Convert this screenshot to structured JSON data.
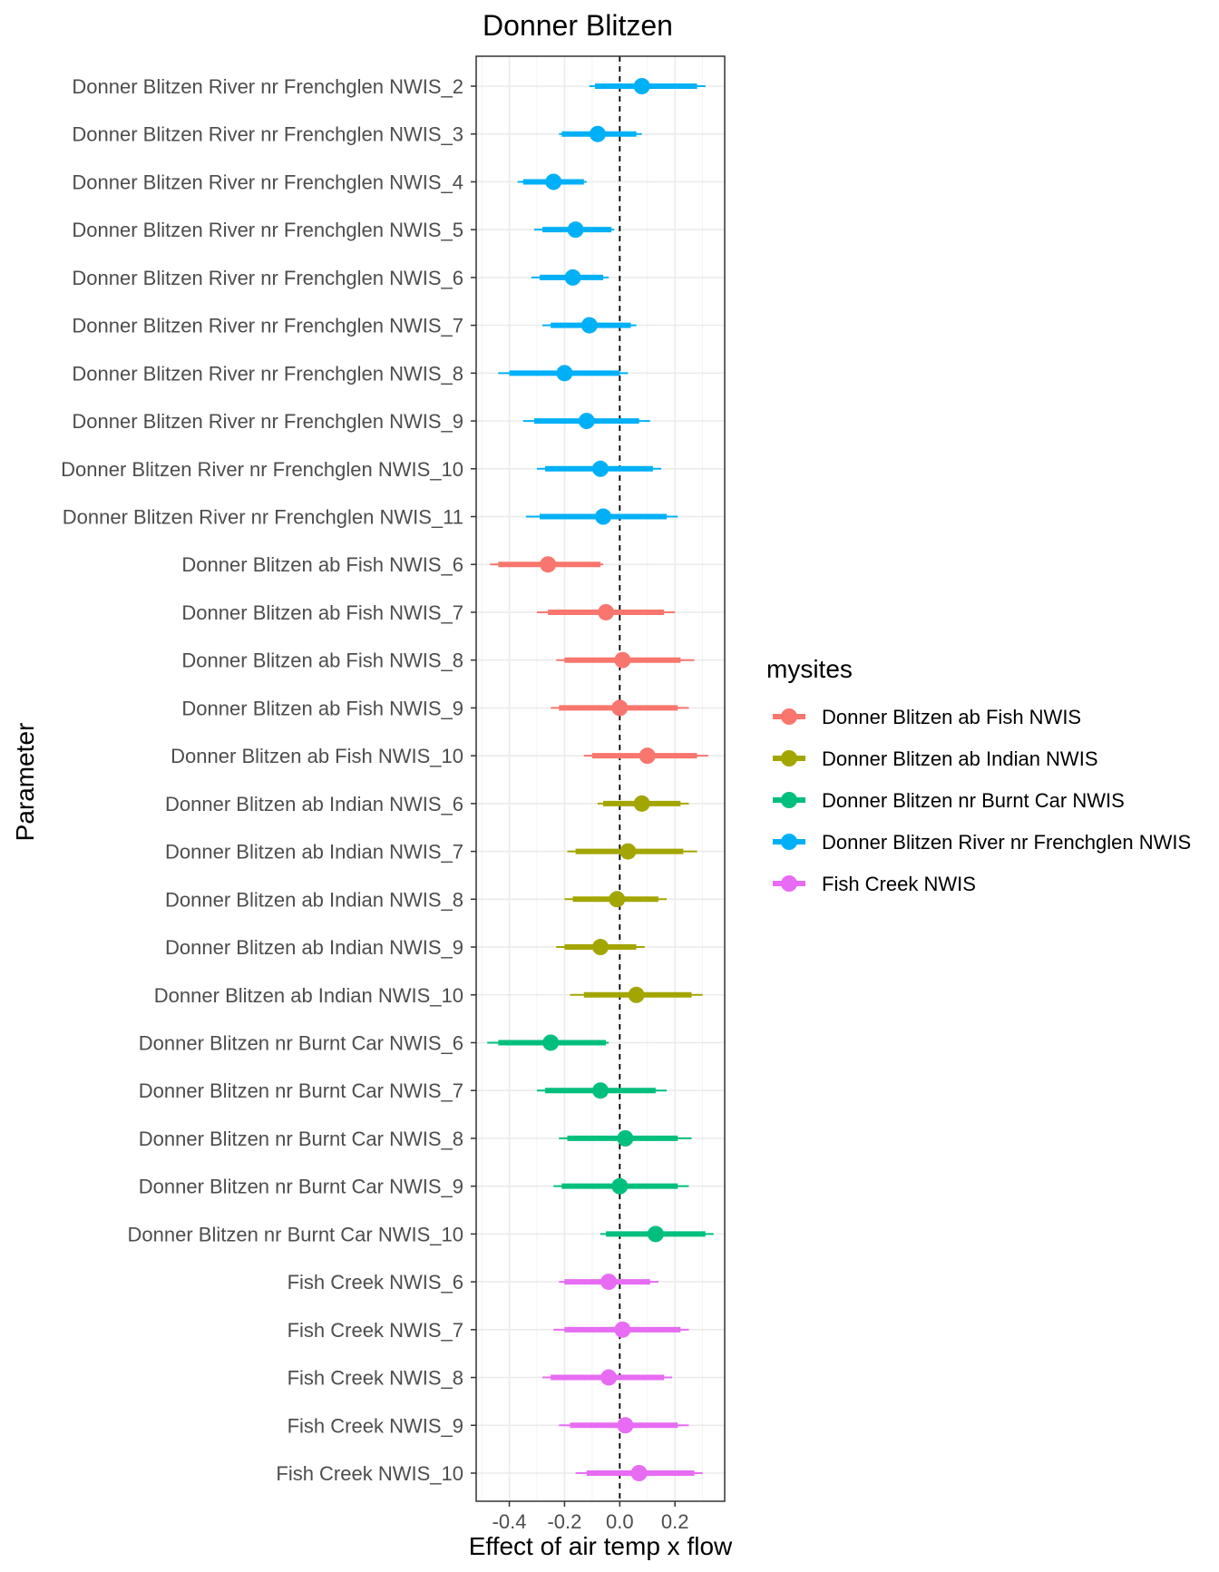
{
  "chart_data": {
    "type": "scatter",
    "subtype": "interval-forest",
    "title": "Donner Blitzen",
    "xlabel": "Effect of air temp x flow",
    "ylabel": "Parameter",
    "xlim": [
      -0.52,
      0.38
    ],
    "xticks": [
      -0.4,
      -0.2,
      0.0,
      0.2
    ],
    "xtick_labels": [
      "-0.4",
      "-0.2",
      "0.0",
      "0.2"
    ],
    "reference_line": {
      "x": 0,
      "style": "dashed"
    },
    "grid": true,
    "legend": {
      "title": "mysites",
      "placement": "right",
      "entries": [
        {
          "name": "Donner Blitzen ab Fish NWIS",
          "color": "#F8766D"
        },
        {
          "name": "Donner Blitzen ab Indian NWIS",
          "color": "#A3A500"
        },
        {
          "name": "Donner Blitzen nr Burnt Car NWIS",
          "color": "#00BF7D"
        },
        {
          "name": "Donner Blitzen River nr Frenchglen NWIS",
          "color": "#00B0F6"
        },
        {
          "name": "Fish Creek NWIS",
          "color": "#E76BF3"
        }
      ]
    },
    "rows": [
      {
        "label": "Donner Blitzen River nr Frenchglen NWIS_2",
        "site": 3,
        "mean": 0.08,
        "inner": [
          -0.09,
          0.28
        ],
        "outer": [
          -0.11,
          0.31
        ]
      },
      {
        "label": "Donner Blitzen River nr Frenchglen NWIS_3",
        "site": 3,
        "mean": -0.08,
        "inner": [
          -0.21,
          0.06
        ],
        "outer": [
          -0.22,
          0.08
        ]
      },
      {
        "label": "Donner Blitzen River nr Frenchglen NWIS_4",
        "site": 3,
        "mean": -0.24,
        "inner": [
          -0.35,
          -0.13
        ],
        "outer": [
          -0.37,
          -0.12
        ]
      },
      {
        "label": "Donner Blitzen River nr Frenchglen NWIS_5",
        "site": 3,
        "mean": -0.16,
        "inner": [
          -0.28,
          -0.03
        ],
        "outer": [
          -0.31,
          -0.02
        ]
      },
      {
        "label": "Donner Blitzen River nr Frenchglen NWIS_6",
        "site": 3,
        "mean": -0.17,
        "inner": [
          -0.29,
          -0.06
        ],
        "outer": [
          -0.32,
          -0.04
        ]
      },
      {
        "label": "Donner Blitzen River nr Frenchglen NWIS_7",
        "site": 3,
        "mean": -0.11,
        "inner": [
          -0.25,
          0.04
        ],
        "outer": [
          -0.28,
          0.06
        ]
      },
      {
        "label": "Donner Blitzen River nr Frenchglen NWIS_8",
        "site": 3,
        "mean": -0.2,
        "inner": [
          -0.4,
          0.0
        ],
        "outer": [
          -0.44,
          0.03
        ]
      },
      {
        "label": "Donner Blitzen River nr Frenchglen NWIS_9",
        "site": 3,
        "mean": -0.12,
        "inner": [
          -0.31,
          0.07
        ],
        "outer": [
          -0.35,
          0.11
        ]
      },
      {
        "label": "Donner Blitzen River nr Frenchglen NWIS_10",
        "site": 3,
        "mean": -0.07,
        "inner": [
          -0.27,
          0.12
        ],
        "outer": [
          -0.3,
          0.15
        ]
      },
      {
        "label": "Donner Blitzen River nr Frenchglen NWIS_11",
        "site": 3,
        "mean": -0.06,
        "inner": [
          -0.29,
          0.17
        ],
        "outer": [
          -0.34,
          0.21
        ]
      },
      {
        "label": "Donner Blitzen ab Fish NWIS_6",
        "site": 0,
        "mean": -0.26,
        "inner": [
          -0.44,
          -0.07
        ],
        "outer": [
          -0.47,
          -0.06
        ]
      },
      {
        "label": "Donner Blitzen ab Fish NWIS_7",
        "site": 0,
        "mean": -0.05,
        "inner": [
          -0.26,
          0.16
        ],
        "outer": [
          -0.3,
          0.2
        ]
      },
      {
        "label": "Donner Blitzen ab Fish NWIS_8",
        "site": 0,
        "mean": 0.01,
        "inner": [
          -0.2,
          0.22
        ],
        "outer": [
          -0.23,
          0.27
        ]
      },
      {
        "label": "Donner Blitzen ab Fish NWIS_9",
        "site": 0,
        "mean": 0.0,
        "inner": [
          -0.22,
          0.21
        ],
        "outer": [
          -0.25,
          0.25
        ]
      },
      {
        "label": "Donner Blitzen ab Fish NWIS_10",
        "site": 0,
        "mean": 0.1,
        "inner": [
          -0.1,
          0.28
        ],
        "outer": [
          -0.13,
          0.32
        ]
      },
      {
        "label": "Donner Blitzen ab Indian NWIS_6",
        "site": 1,
        "mean": 0.08,
        "inner": [
          -0.06,
          0.22
        ],
        "outer": [
          -0.08,
          0.25
        ]
      },
      {
        "label": "Donner Blitzen ab Indian NWIS_7",
        "site": 1,
        "mean": 0.03,
        "inner": [
          -0.16,
          0.23
        ],
        "outer": [
          -0.19,
          0.28
        ]
      },
      {
        "label": "Donner Blitzen ab Indian NWIS_8",
        "site": 1,
        "mean": -0.01,
        "inner": [
          -0.17,
          0.14
        ],
        "outer": [
          -0.2,
          0.17
        ]
      },
      {
        "label": "Donner Blitzen ab Indian NWIS_9",
        "site": 1,
        "mean": -0.07,
        "inner": [
          -0.2,
          0.06
        ],
        "outer": [
          -0.23,
          0.09
        ]
      },
      {
        "label": "Donner Blitzen ab Indian NWIS_10",
        "site": 1,
        "mean": 0.06,
        "inner": [
          -0.13,
          0.26
        ],
        "outer": [
          -0.18,
          0.3
        ]
      },
      {
        "label": "Donner Blitzen nr Burnt Car NWIS_6",
        "site": 2,
        "mean": -0.25,
        "inner": [
          -0.44,
          -0.05
        ],
        "outer": [
          -0.48,
          -0.04
        ]
      },
      {
        "label": "Donner Blitzen nr Burnt Car NWIS_7",
        "site": 2,
        "mean": -0.07,
        "inner": [
          -0.27,
          0.13
        ],
        "outer": [
          -0.3,
          0.17
        ]
      },
      {
        "label": "Donner Blitzen nr Burnt Car NWIS_8",
        "site": 2,
        "mean": 0.02,
        "inner": [
          -0.19,
          0.21
        ],
        "outer": [
          -0.22,
          0.26
        ]
      },
      {
        "label": "Donner Blitzen nr Burnt Car NWIS_9",
        "site": 2,
        "mean": 0.0,
        "inner": [
          -0.21,
          0.21
        ],
        "outer": [
          -0.24,
          0.25
        ]
      },
      {
        "label": "Donner Blitzen nr Burnt Car NWIS_10",
        "site": 2,
        "mean": 0.13,
        "inner": [
          -0.05,
          0.31
        ],
        "outer": [
          -0.07,
          0.34
        ]
      },
      {
        "label": "Fish Creek NWIS_6",
        "site": 4,
        "mean": -0.04,
        "inner": [
          -0.2,
          0.11
        ],
        "outer": [
          -0.22,
          0.14
        ]
      },
      {
        "label": "Fish Creek NWIS_7",
        "site": 4,
        "mean": 0.01,
        "inner": [
          -0.2,
          0.22
        ],
        "outer": [
          -0.24,
          0.25
        ]
      },
      {
        "label": "Fish Creek NWIS_8",
        "site": 4,
        "mean": -0.04,
        "inner": [
          -0.25,
          0.16
        ],
        "outer": [
          -0.28,
          0.19
        ]
      },
      {
        "label": "Fish Creek NWIS_9",
        "site": 4,
        "mean": 0.02,
        "inner": [
          -0.18,
          0.21
        ],
        "outer": [
          -0.22,
          0.25
        ]
      },
      {
        "label": "Fish Creek NWIS_10",
        "site": 4,
        "mean": 0.07,
        "inner": [
          -0.12,
          0.27
        ],
        "outer": [
          -0.16,
          0.3
        ]
      }
    ]
  }
}
